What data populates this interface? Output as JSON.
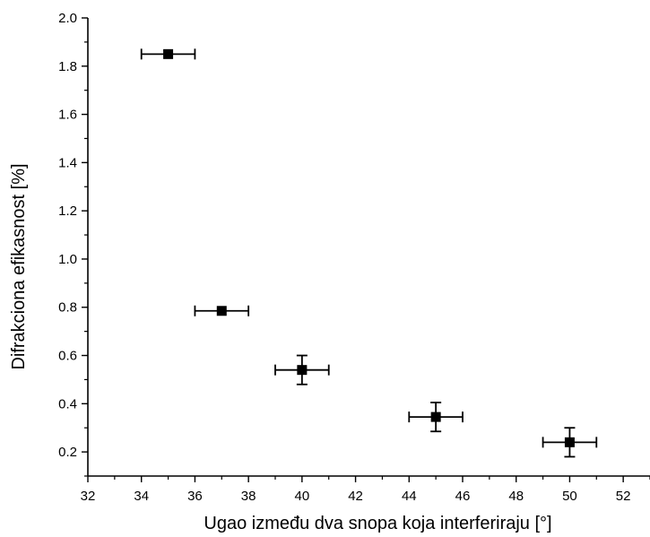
{
  "chart_data": {
    "type": "scatter",
    "title": "",
    "xlabel": "Ugao između dva snopa koja interferiraju [°]",
    "ylabel": "Difrakciona efikasnost [%]",
    "xlim": [
      32,
      53
    ],
    "ylim": [
      0.1,
      2.0
    ],
    "x_ticks": [
      32,
      34,
      36,
      38,
      40,
      42,
      44,
      46,
      48,
      50,
      52
    ],
    "y_ticks": [
      0.2,
      0.4,
      0.6,
      0.8,
      1.0,
      1.2,
      1.4,
      1.6,
      1.8,
      2.0
    ],
    "x_tick_labels": [
      "32",
      "34",
      "36",
      "38",
      "40",
      "42",
      "44",
      "46",
      "48",
      "50",
      "52"
    ],
    "y_tick_labels": [
      "0.2",
      "0.4",
      "0.6",
      "0.8",
      "1.0",
      "1.2",
      "1.4",
      "1.6",
      "1.8",
      "2.0"
    ],
    "grid": false,
    "marker": "square",
    "color": "#000000",
    "points": [
      {
        "x": 35,
        "y": 1.85,
        "xerr": 1,
        "yerr": 0
      },
      {
        "x": 37,
        "y": 0.785,
        "xerr": 1,
        "yerr": 0
      },
      {
        "x": 40,
        "y": 0.54,
        "xerr": 1,
        "yerr": 0.06
      },
      {
        "x": 45,
        "y": 0.345,
        "xerr": 1,
        "yerr": 0.06
      },
      {
        "x": 50,
        "y": 0.24,
        "xerr": 1,
        "yerr": 0.06
      }
    ]
  }
}
